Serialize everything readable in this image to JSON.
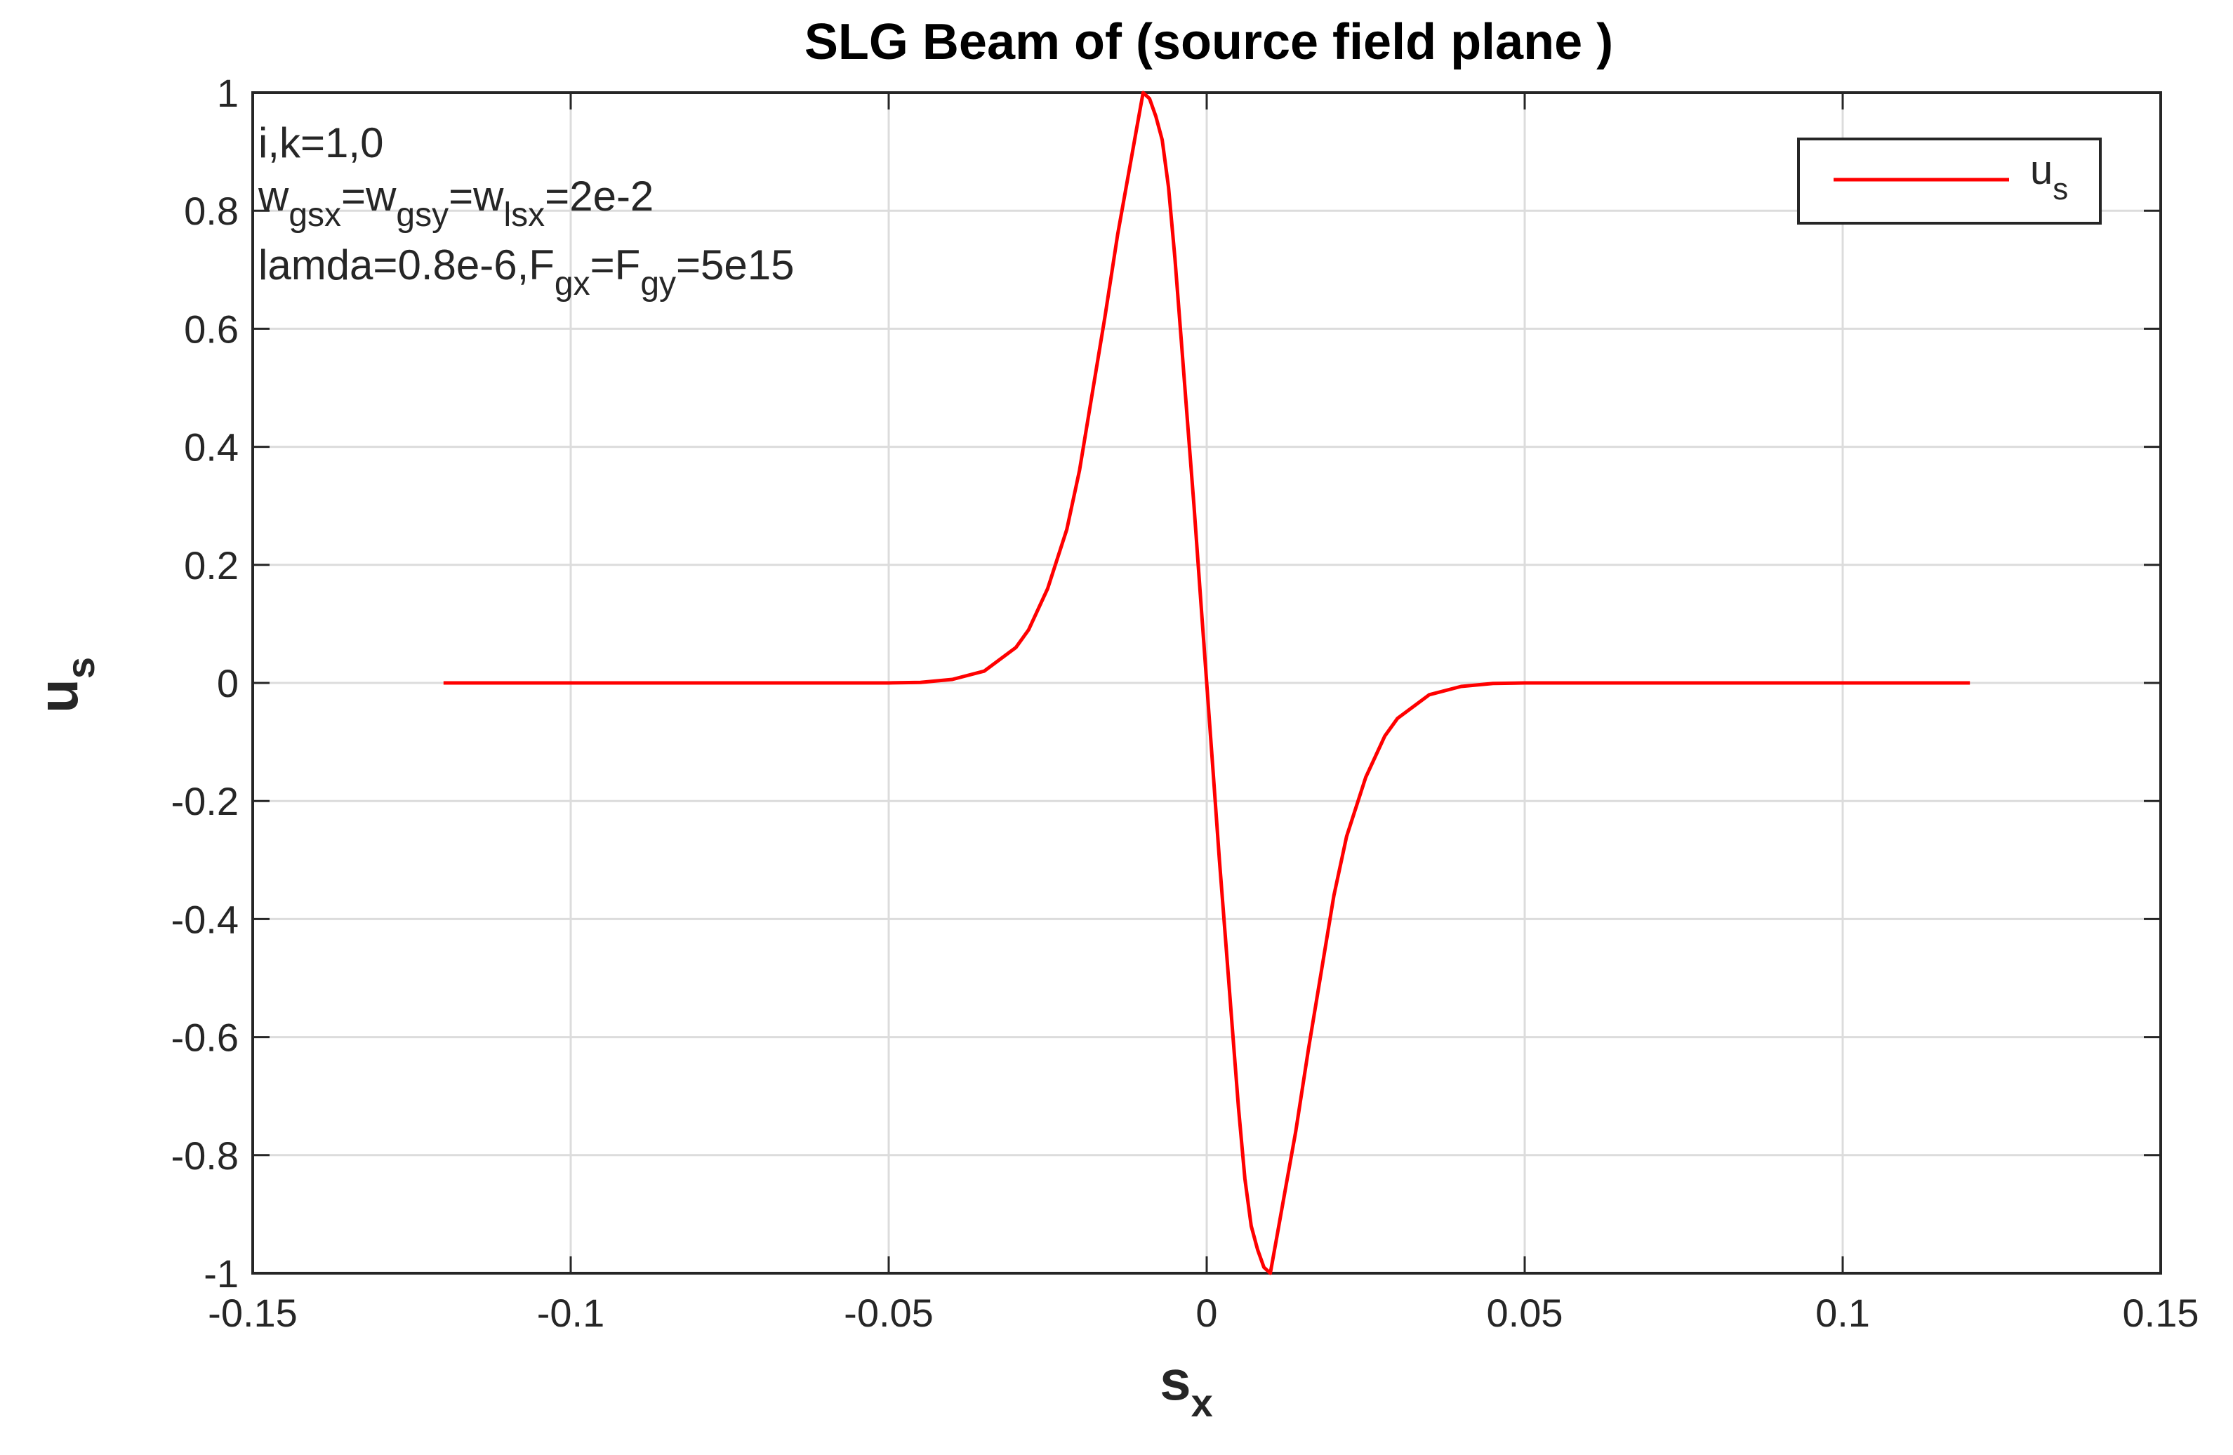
{
  "chart_data": {
    "type": "line",
    "title": "SLG Beam of (source field plane )",
    "xlabel": {
      "base": "s",
      "sub": "x"
    },
    "ylabel": {
      "base": "u",
      "sub": "s"
    },
    "xlim": [
      -0.15,
      0.15
    ],
    "ylim": [
      -1,
      1
    ],
    "xticks": [
      -0.15,
      -0.1,
      -0.05,
      0,
      0.05,
      0.1,
      0.15
    ],
    "xtick_labels": [
      "-0.15",
      "-0.1",
      "-0.05",
      "0",
      "0.05",
      "0.1",
      "0.15"
    ],
    "yticks": [
      1,
      0.8,
      0.6,
      0.4,
      0.2,
      0,
      -0.2,
      -0.4,
      -0.6,
      -0.8,
      -1
    ],
    "ytick_labels": [
      "1",
      "0.8",
      "0.6",
      "0.4",
      "0.2",
      "0",
      "-0.2",
      "-0.4",
      "-0.6",
      "-0.8",
      "-1"
    ],
    "grid": true,
    "legend": {
      "position": "top-right",
      "label_base": "u",
      "label_sub": "s"
    },
    "annotation_lines": [
      [
        {
          "t": "i,k=1,0"
        }
      ],
      [
        {
          "t": "w"
        },
        {
          "s": "gsx"
        },
        {
          "t": "=w"
        },
        {
          "s": "gsy"
        },
        {
          "t": "=w"
        },
        {
          "s": "lsx"
        },
        {
          "t": "=2e-2"
        }
      ],
      [
        {
          "t": "lamda=0.8e-6,F"
        },
        {
          "s": "gx"
        },
        {
          "t": "=F"
        },
        {
          "s": "gy"
        },
        {
          "t": "=5e15"
        }
      ]
    ],
    "series": [
      {
        "color": "#ff0000",
        "x": [
          -0.12,
          -0.1,
          -0.08,
          -0.06,
          -0.05,
          -0.045,
          -0.04,
          -0.035,
          -0.03,
          -0.028,
          -0.025,
          -0.022,
          -0.02,
          -0.018,
          -0.016,
          -0.014,
          -0.012,
          -0.011,
          -0.01,
          -0.009,
          -0.008,
          -0.007,
          -0.006,
          -0.005,
          -0.004,
          -0.003,
          -0.002,
          -0.001,
          0,
          0.001,
          0.002,
          0.003,
          0.004,
          0.005,
          0.006,
          0.007,
          0.008,
          0.009,
          0.01,
          0.011,
          0.012,
          0.014,
          0.016,
          0.018,
          0.02,
          0.022,
          0.025,
          0.028,
          0.03,
          0.035,
          0.04,
          0.045,
          0.05,
          0.06,
          0.08,
          0.1,
          0.12
        ],
        "y": [
          0,
          0,
          0,
          0,
          0,
          0.001,
          0.006,
          0.02,
          0.06,
          0.09,
          0.16,
          0.26,
          0.36,
          0.49,
          0.62,
          0.76,
          0.88,
          0.94,
          1.0,
          0.99,
          0.96,
          0.92,
          0.84,
          0.72,
          0.58,
          0.44,
          0.3,
          0.15,
          0.0,
          -0.15,
          -0.3,
          -0.44,
          -0.58,
          -0.72,
          -0.84,
          -0.92,
          -0.96,
          -0.99,
          -1.0,
          -0.94,
          -0.88,
          -0.76,
          -0.62,
          -0.49,
          -0.36,
          -0.26,
          -0.16,
          -0.09,
          -0.06,
          -0.02,
          -0.006,
          -0.001,
          0,
          0,
          0,
          0,
          0
        ]
      }
    ]
  }
}
